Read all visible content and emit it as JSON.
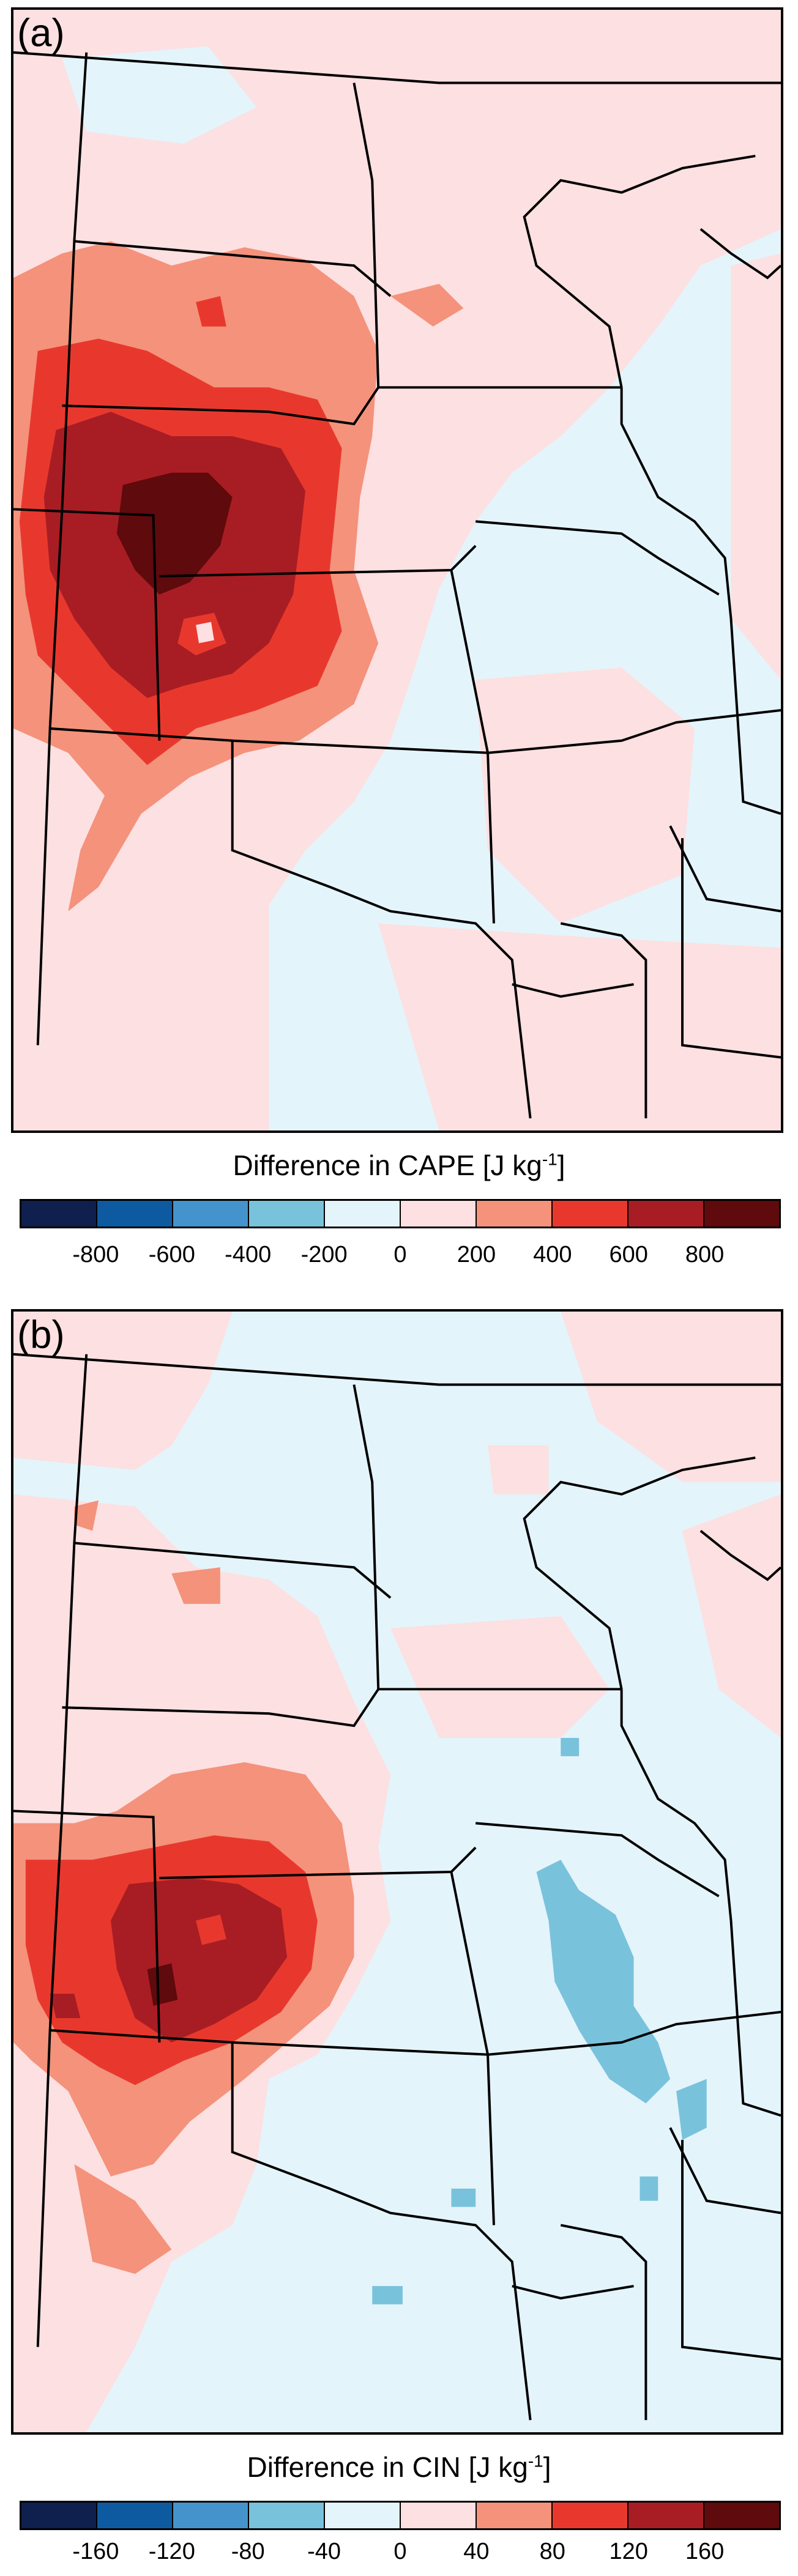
{
  "panels": [
    {
      "letter": "(a)",
      "variable": "CAPE",
      "title_prefix": "Difference in CAPE [J kg",
      "title_sup": "-1",
      "title_suffix": "]",
      "ticks": [
        "-800",
        "-600",
        "-400",
        "-200",
        "0",
        "200",
        "400",
        "600",
        "800"
      ]
    },
    {
      "letter": "(b)",
      "variable": "CIN",
      "title_prefix": "Difference in CIN [J kg",
      "title_sup": "-1",
      "title_suffix": "]",
      "ticks": [
        "-160",
        "-120",
        "-80",
        "-40",
        "0",
        "40",
        "80",
        "120",
        "160"
      ]
    }
  ],
  "colors": {
    "scale": [
      "#0f1f4e",
      "#0e5aa0",
      "#4593cc",
      "#79c2dc",
      "#e4f4fb",
      "#fde0e1",
      "#f4927b",
      "#e8382d",
      "#a81d24",
      "#5f0a0d"
    ],
    "border": "#000000"
  }
}
